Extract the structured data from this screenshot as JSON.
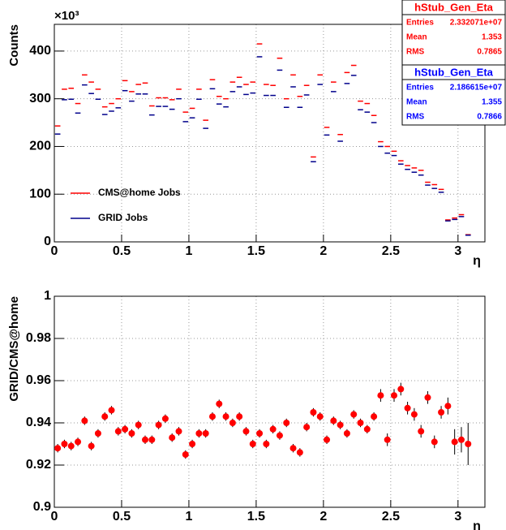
{
  "chart_data": [
    {
      "type": "scatter",
      "marker": "dash",
      "ylabel": "Counts",
      "xlabel": "η",
      "y_multiplier": "×10³",
      "xlim": [
        0,
        3.2
      ],
      "ylim": [
        0,
        456
      ],
      "xticks": [
        0,
        0.5,
        1,
        1.5,
        2,
        2.5,
        3
      ],
      "yticks": [
        0,
        100,
        200,
        300,
        400
      ],
      "grid": true,
      "legend": "lower left",
      "x": [
        0.025,
        0.075,
        0.125,
        0.175,
        0.225,
        0.275,
        0.325,
        0.375,
        0.425,
        0.475,
        0.525,
        0.575,
        0.625,
        0.675,
        0.725,
        0.775,
        0.825,
        0.875,
        0.925,
        0.975,
        1.025,
        1.075,
        1.125,
        1.175,
        1.225,
        1.275,
        1.325,
        1.375,
        1.425,
        1.475,
        1.525,
        1.575,
        1.625,
        1.675,
        1.725,
        1.775,
        1.825,
        1.875,
        1.925,
        1.975,
        2.025,
        2.075,
        2.125,
        2.175,
        2.225,
        2.275,
        2.325,
        2.375,
        2.425,
        2.475,
        2.525,
        2.575,
        2.625,
        2.675,
        2.725,
        2.775,
        2.825,
        2.875,
        2.925,
        2.975,
        3.025,
        3.075
      ],
      "series": [
        {
          "name": "CMS@home Jobs",
          "color": "#ff0000",
          "values": [
            243,
            320,
            322,
            290,
            350,
            335,
            320,
            283,
            290,
            300,
            338,
            315,
            330,
            333,
            285,
            302,
            302,
            298,
            320,
            272,
            280,
            320,
            255,
            340,
            305,
            300,
            335,
            345,
            330,
            335,
            415,
            330,
            328,
            385,
            300,
            350,
            305,
            328,
            178,
            350,
            240,
            335,
            225,
            355,
            370,
            295,
            290,
            265,
            210,
            200,
            190,
            170,
            160,
            155,
            150,
            125,
            120,
            110,
            46,
            50,
            57,
            15
          ]
        },
        {
          "name": "GRID Jobs",
          "color": "#00008b",
          "values": [
            226,
            298,
            299,
            270,
            329,
            311,
            299,
            267,
            274,
            281,
            317,
            295,
            310,
            310,
            266,
            284,
            284,
            278,
            300,
            252,
            260,
            299,
            238,
            321,
            289,
            283,
            315,
            325,
            309,
            312,
            388,
            307,
            307,
            360,
            282,
            325,
            282,
            308,
            168,
            330,
            224,
            315,
            211,
            332,
            349,
            277,
            272,
            250,
            200,
            186,
            181,
            163,
            152,
            146,
            140,
            119,
            112,
            104,
            44,
            47,
            53,
            14
          ]
        }
      ]
    },
    {
      "type": "errorbar",
      "ylabel": "GRID/CMS@home",
      "xlabel": "η",
      "color": "#ff0000",
      "xlim": [
        0,
        3.2
      ],
      "ylim": [
        0.9,
        1
      ],
      "xticks": [
        0,
        0.5,
        1,
        1.5,
        2,
        2.5,
        3
      ],
      "yticks": [
        0.9,
        0.92,
        0.94,
        0.96,
        0.98,
        1
      ],
      "grid": true,
      "x": [
        0.025,
        0.075,
        0.125,
        0.175,
        0.225,
        0.275,
        0.325,
        0.375,
        0.425,
        0.475,
        0.525,
        0.575,
        0.625,
        0.675,
        0.725,
        0.775,
        0.825,
        0.875,
        0.925,
        0.975,
        1.025,
        1.075,
        1.125,
        1.175,
        1.225,
        1.275,
        1.325,
        1.375,
        1.425,
        1.475,
        1.525,
        1.575,
        1.625,
        1.675,
        1.725,
        1.775,
        1.825,
        1.875,
        1.925,
        1.975,
        2.025,
        2.075,
        2.125,
        2.175,
        2.225,
        2.275,
        2.325,
        2.375,
        2.425,
        2.475,
        2.525,
        2.575,
        2.625,
        2.675,
        2.725,
        2.775,
        2.825,
        2.875,
        2.925,
        2.975,
        3.025,
        3.075
      ],
      "values": [
        0.928,
        0.93,
        0.929,
        0.931,
        0.941,
        0.929,
        0.935,
        0.943,
        0.946,
        0.936,
        0.937,
        0.935,
        0.939,
        0.932,
        0.932,
        0.939,
        0.942,
        0.933,
        0.936,
        0.925,
        0.93,
        0.935,
        0.935,
        0.943,
        0.949,
        0.943,
        0.94,
        0.943,
        0.936,
        0.93,
        0.935,
        0.93,
        0.937,
        0.934,
        0.94,
        0.928,
        0.926,
        0.938,
        0.945,
        0.943,
        0.932,
        0.941,
        0.939,
        0.935,
        0.944,
        0.94,
        0.937,
        0.943,
        0.953,
        0.932,
        0.953,
        0.956,
        0.947,
        0.944,
        0.936,
        0.952,
        0.931,
        0.945,
        0.948,
        0.931,
        0.932,
        0.93
      ],
      "errors": [
        0.002,
        0.002,
        0.002,
        0.002,
        0.002,
        0.002,
        0.002,
        0.002,
        0.002,
        0.002,
        0.002,
        0.002,
        0.002,
        0.002,
        0.002,
        0.002,
        0.002,
        0.002,
        0.002,
        0.002,
        0.002,
        0.002,
        0.002,
        0.002,
        0.002,
        0.002,
        0.002,
        0.002,
        0.002,
        0.002,
        0.002,
        0.002,
        0.002,
        0.002,
        0.002,
        0.002,
        0.002,
        0.002,
        0.002,
        0.002,
        0.002,
        0.002,
        0.002,
        0.002,
        0.002,
        0.002,
        0.002,
        0.002,
        0.003,
        0.003,
        0.003,
        0.003,
        0.003,
        0.003,
        0.003,
        0.003,
        0.003,
        0.003,
        0.004,
        0.006,
        0.006,
        0.01
      ]
    }
  ],
  "stat_boxes": [
    {
      "title": "hStub_Gen_Eta",
      "color": "#ff0000",
      "rows": [
        [
          "Entries",
          "2.332071e+07"
        ],
        [
          "Mean",
          "1.353"
        ],
        [
          "RMS",
          "0.7865"
        ]
      ]
    },
    {
      "title": "hStub_Gen_Eta",
      "color": "#0000ff",
      "rows": [
        [
          "Entries",
          "2.186615e+07"
        ],
        [
          "Mean",
          "1.355"
        ],
        [
          "RMS",
          "0.7866"
        ]
      ]
    }
  ]
}
